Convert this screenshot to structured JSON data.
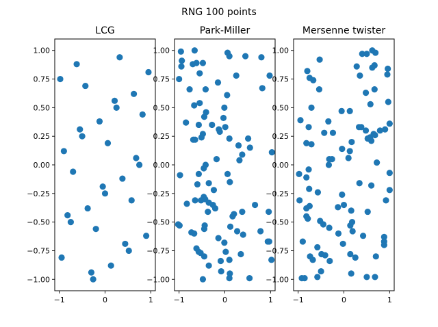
{
  "figure": {
    "title": "RNG 100 points",
    "marker_color": "#1f77b4"
  },
  "chart_data": [
    {
      "type": "scatter",
      "title": "LCG",
      "xlim": [
        -1.1,
        1.1
      ],
      "ylim": [
        -1.1,
        1.1
      ],
      "xticks": [
        -1,
        0,
        1
      ],
      "yticks": [
        -1.0,
        -0.75,
        -0.5,
        -0.25,
        0.0,
        0.25,
        0.5,
        0.75,
        1.0
      ],
      "ytick_labels": [
        "−1.00",
        "−0.75",
        "−0.50",
        "−0.25",
        "0.00",
        "0.25",
        "0.50",
        "0.75",
        "1.00"
      ],
      "xtick_labels": [
        "−1",
        "0",
        "1"
      ],
      "points": [
        [
          -0.98,
          0.75
        ],
        [
          -0.62,
          0.88
        ],
        [
          -0.43,
          0.69
        ],
        [
          0.32,
          0.94
        ],
        [
          0.95,
          0.81
        ],
        [
          0.21,
          0.56
        ],
        [
          0.25,
          0.5
        ],
        [
          0.63,
          0.62
        ],
        [
          0.82,
          0.44
        ],
        [
          -0.55,
          0.31
        ],
        [
          -0.5,
          0.25
        ],
        [
          -0.12,
          0.38
        ],
        [
          0.06,
          0.19
        ],
        [
          -0.9,
          0.12
        ],
        [
          0.68,
          0.06
        ],
        [
          0.75,
          0.0
        ],
        [
          -0.7,
          -0.06
        ],
        [
          -0.05,
          -0.19
        ],
        [
          0.0,
          -0.25
        ],
        [
          0.38,
          -0.12
        ],
        [
          0.58,
          -0.31
        ],
        [
          -0.38,
          -0.38
        ],
        [
          -0.82,
          -0.44
        ],
        [
          -0.75,
          -0.5
        ],
        [
          -0.2,
          -0.56
        ],
        [
          0.9,
          -0.62
        ],
        [
          0.44,
          -0.69
        ],
        [
          0.52,
          -0.75
        ],
        [
          -0.95,
          -0.81
        ],
        [
          0.13,
          -0.88
        ],
        [
          -0.3,
          -0.94
        ],
        [
          -0.26,
          -1.0
        ]
      ]
    },
    {
      "type": "scatter",
      "title": "Park-Miller",
      "xlim": [
        -1.1,
        1.1
      ],
      "ylim": [
        -1.1,
        1.1
      ],
      "xticks": [
        -1,
        0,
        1
      ],
      "yticks": [
        -1.0,
        -0.75,
        -0.5,
        -0.25,
        0.0,
        0.25,
        0.5,
        0.75,
        1.0
      ],
      "ytick_labels": [
        "−1.00",
        "−0.75",
        "−0.50",
        "−0.25",
        "0.00",
        "0.25",
        "0.50",
        "0.75",
        "1.00"
      ],
      "xtick_labels": [
        "−1",
        "0",
        "1"
      ],
      "points": [
        [
          -0.96,
          0.99
        ],
        [
          -0.66,
          1.0
        ],
        [
          0.06,
          0.98
        ],
        [
          0.1,
          0.95
        ],
        [
          0.45,
          0.95
        ],
        [
          0.8,
          0.94
        ],
        [
          -0.94,
          0.91
        ],
        [
          -0.95,
          0.86
        ],
        [
          -0.7,
          0.88
        ],
        [
          -0.62,
          0.89
        ],
        [
          -0.48,
          0.89
        ],
        [
          -0.55,
          0.8
        ],
        [
          -1.0,
          0.75
        ],
        [
          0.25,
          0.78
        ],
        [
          0.98,
          0.78
        ],
        [
          -0.15,
          0.72
        ],
        [
          0.82,
          0.67
        ],
        [
          -0.77,
          0.66
        ],
        [
          -0.42,
          0.66
        ],
        [
          0.05,
          0.61
        ],
        [
          -0.55,
          0.54
        ],
        [
          -0.67,
          0.52
        ],
        [
          -0.41,
          0.46
        ],
        [
          -0.45,
          0.42
        ],
        [
          -0.01,
          0.5
        ],
        [
          -0.03,
          0.41
        ],
        [
          -0.85,
          0.37
        ],
        [
          -0.57,
          0.35
        ],
        [
          -0.28,
          0.35
        ],
        [
          -0.13,
          0.31
        ],
        [
          -0.11,
          0.29
        ],
        [
          0.01,
          0.33
        ],
        [
          -0.48,
          0.27
        ],
        [
          -0.51,
          0.24
        ],
        [
          -0.69,
          0.22
        ],
        [
          -0.65,
          0.22
        ],
        [
          0.1,
          0.23
        ],
        [
          0.51,
          0.23
        ],
        [
          0.3,
          0.17
        ],
        [
          0.55,
          0.15
        ],
        [
          1.03,
          0.11
        ],
        [
          0.38,
          0.09
        ],
        [
          -0.18,
          0.05
        ],
        [
          0.32,
          0.04
        ],
        [
          -0.42,
          0.0
        ],
        [
          -0.46,
          -0.03
        ],
        [
          -0.57,
          -0.08
        ],
        [
          -0.98,
          -0.09
        ],
        [
          0.06,
          -0.08
        ],
        [
          0.11,
          -0.15
        ],
        [
          -0.6,
          -0.17
        ],
        [
          -0.35,
          -0.16
        ],
        [
          -0.24,
          -0.22
        ],
        [
          -0.46,
          -0.28
        ],
        [
          -0.43,
          -0.3
        ],
        [
          -0.52,
          -0.31
        ],
        [
          -0.65,
          -0.31
        ],
        [
          -0.35,
          -0.33
        ],
        [
          -0.26,
          -0.35
        ],
        [
          -0.83,
          -0.34
        ],
        [
          -0.21,
          -0.38
        ],
        [
          0.66,
          -0.35
        ],
        [
          0.38,
          -0.41
        ],
        [
          -0.37,
          -0.41
        ],
        [
          0.2,
          -0.43
        ],
        [
          0.17,
          -0.45
        ],
        [
          0.96,
          -0.41
        ],
        [
          -1.02,
          -0.52
        ],
        [
          -0.99,
          -0.53
        ],
        [
          -0.44,
          -0.53
        ],
        [
          -0.45,
          -0.56
        ],
        [
          0.12,
          -0.54
        ],
        [
          -0.73,
          -0.59
        ],
        [
          -0.67,
          -0.6
        ],
        [
          0.27,
          -0.58
        ],
        [
          0.4,
          -0.61
        ],
        [
          0.78,
          -0.58
        ],
        [
          -0.14,
          -0.64
        ],
        [
          -0.01,
          -0.68
        ],
        [
          0.94,
          -0.67
        ],
        [
          0.97,
          -0.67
        ],
        [
          -0.62,
          -0.73
        ],
        [
          -0.57,
          -0.76
        ],
        [
          -0.53,
          -0.77
        ],
        [
          0.02,
          -0.76
        ],
        [
          0.35,
          -0.78
        ],
        [
          -0.45,
          -0.8
        ],
        [
          -0.09,
          -0.84
        ],
        [
          0.1,
          -0.83
        ],
        [
          1.02,
          -0.83
        ],
        [
          -0.35,
          -0.88
        ],
        [
          -0.08,
          -0.93
        ],
        [
          0.11,
          -0.95
        ],
        [
          0.1,
          -0.99
        ],
        [
          -0.48,
          -1.0
        ],
        [
          0.54,
          -0.99
        ]
      ]
    },
    {
      "type": "scatter",
      "title": "Mersenne twister",
      "xlim": [
        -1.1,
        1.1
      ],
      "ylim": [
        -1.1,
        1.1
      ],
      "xticks": [
        -1,
        0,
        1
      ],
      "yticks": [
        -1.0,
        -0.75,
        -0.5,
        -0.25,
        0.0,
        0.25,
        0.5,
        0.75,
        1.0
      ],
      "ytick_labels": [
        "−1.00",
        "−0.75",
        "−0.50",
        "−0.25",
        "0.00",
        "0.25",
        "0.50",
        "0.75",
        "1.00"
      ],
      "xtick_labels": [
        "−1",
        "0",
        "1"
      ],
      "points": [
        [
          0.62,
          1.0
        ],
        [
          0.4,
          0.97
        ],
        [
          0.5,
          0.97
        ],
        [
          0.69,
          0.98
        ],
        [
          -0.53,
          0.92
        ],
        [
          0.28,
          0.86
        ],
        [
          0.62,
          0.85
        ],
        [
          0.67,
          0.87
        ],
        [
          0.96,
          0.84
        ],
        [
          -0.8,
          0.82
        ],
        [
          -0.75,
          0.76
        ],
        [
          -0.67,
          0.74
        ],
        [
          0.35,
          0.78
        ],
        [
          0.95,
          0.79
        ],
        [
          -0.54,
          0.66
        ],
        [
          0.67,
          0.66
        ],
        [
          0.48,
          0.63
        ],
        [
          0.58,
          0.53
        ],
        [
          0.97,
          0.55
        ],
        [
          -0.71,
          0.5
        ],
        [
          -0.05,
          0.47
        ],
        [
          0.13,
          0.47
        ],
        [
          -0.95,
          0.39
        ],
        [
          -0.34,
          0.38
        ],
        [
          -0.77,
          0.33
        ],
        [
          -0.43,
          0.28
        ],
        [
          -0.24,
          0.28
        ],
        [
          0.33,
          0.33
        ],
        [
          0.38,
          0.33
        ],
        [
          0.48,
          0.3
        ],
        [
          0.65,
          0.27
        ],
        [
          0.57,
          0.24
        ],
        [
          0.6,
          0.21
        ],
        [
          0.68,
          0.26
        ],
        [
          0.79,
          0.3
        ],
        [
          0.9,
          0.31
        ],
        [
          1.0,
          0.36
        ],
        [
          -0.82,
          0.19
        ],
        [
          -0.71,
          0.18
        ],
        [
          0.17,
          0.2
        ],
        [
          -0.04,
          0.14
        ],
        [
          0.13,
          0.12
        ],
        [
          0.52,
          0.23
        ],
        [
          -0.32,
          0.05
        ],
        [
          -0.26,
          0.05
        ],
        [
          -0.33,
          0.0
        ],
        [
          0.1,
          0.06
        ],
        [
          0.72,
          0.02
        ],
        [
          -0.77,
          -0.04
        ],
        [
          -0.98,
          -0.08
        ],
        [
          -0.82,
          -0.11
        ],
        [
          1.0,
          -0.07
        ],
        [
          -0.76,
          -0.21
        ],
        [
          -0.57,
          -0.24
        ],
        [
          -0.04,
          -0.26
        ],
        [
          0.6,
          -0.18
        ],
        [
          0.34,
          -0.16
        ],
        [
          -0.97,
          -0.31
        ],
        [
          -0.75,
          -0.36
        ],
        [
          -0.82,
          -0.38
        ],
        [
          -0.13,
          -0.37
        ],
        [
          0.0,
          -0.35
        ],
        [
          0.16,
          -0.4
        ],
        [
          0.92,
          -0.31
        ],
        [
          1.0,
          -0.22
        ],
        [
          -0.82,
          -0.45
        ],
        [
          -0.79,
          -0.47
        ],
        [
          -0.52,
          -0.49
        ],
        [
          0.14,
          -0.53
        ],
        [
          0.18,
          -0.5
        ],
        [
          -0.45,
          -0.52
        ],
        [
          0.52,
          -0.41
        ],
        [
          -0.9,
          -0.67
        ],
        [
          -0.32,
          -0.55
        ],
        [
          -0.12,
          -0.6
        ],
        [
          -0.02,
          -0.69
        ],
        [
          0.19,
          -0.58
        ],
        [
          0.42,
          -0.62
        ],
        [
          0.88,
          -0.63
        ],
        [
          0.88,
          -0.67
        ],
        [
          0.88,
          -0.7
        ],
        [
          -0.58,
          -0.72
        ],
        [
          -0.74,
          -0.8
        ],
        [
          -0.68,
          -0.83
        ],
        [
          -0.49,
          -0.78
        ],
        [
          -0.41,
          -0.79
        ],
        [
          -0.31,
          -0.84
        ],
        [
          0.14,
          -0.78
        ],
        [
          0.25,
          -0.81
        ],
        [
          0.7,
          -0.8
        ],
        [
          -0.5,
          -0.93
        ],
        [
          -0.58,
          -0.98
        ],
        [
          -0.92,
          -0.99
        ],
        [
          -0.86,
          -0.99
        ],
        [
          0.16,
          -0.95
        ],
        [
          0.5,
          -0.98
        ],
        [
          0.68,
          -0.98
        ]
      ]
    }
  ]
}
